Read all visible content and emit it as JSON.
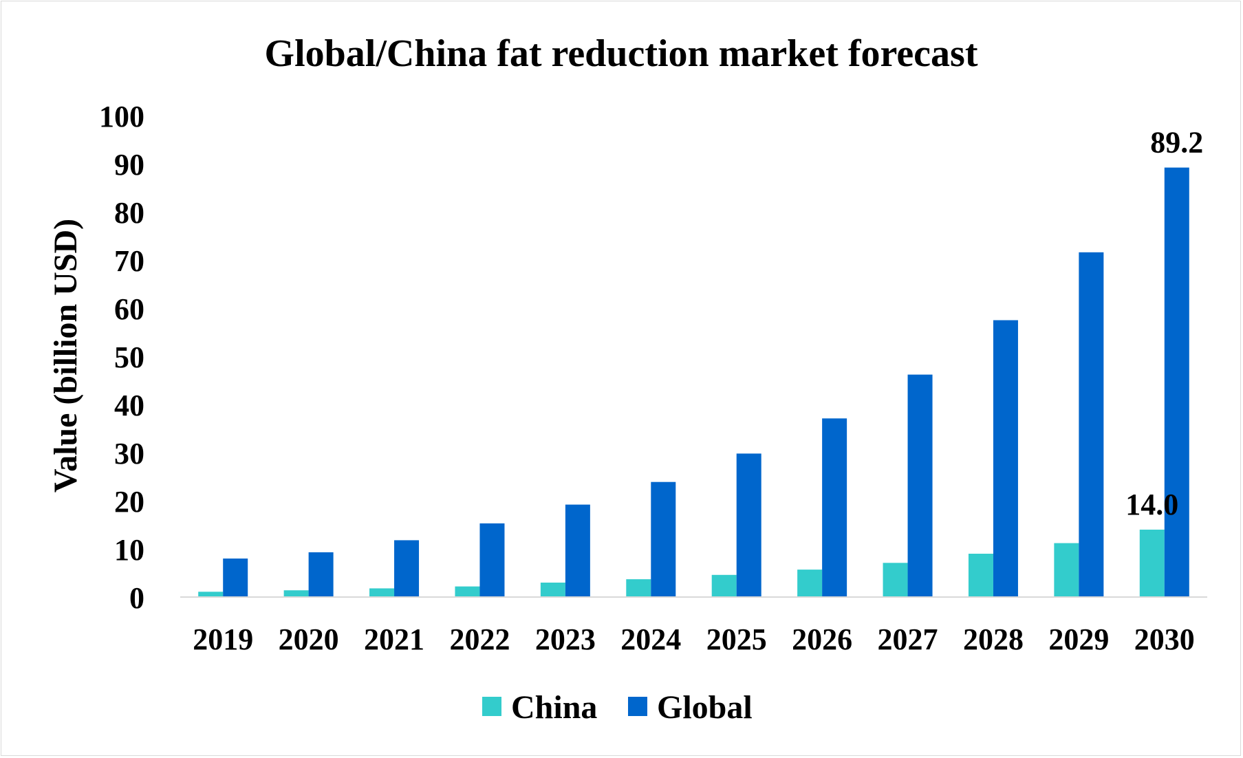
{
  "chart_data": {
    "type": "bar",
    "title": "Global/China fat reduction market forecast",
    "xlabel": "",
    "ylabel": "Value (billion USD)",
    "ylim": [
      0,
      100
    ],
    "yticks": [
      "0",
      "10",
      "20",
      "30",
      "40",
      "50",
      "60",
      "70",
      "80",
      "90",
      "100"
    ],
    "categories": [
      "2019",
      "2020",
      "2021",
      "2022",
      "2023",
      "2024",
      "2025",
      "2026",
      "2027",
      "2028",
      "2029",
      "2030"
    ],
    "series": [
      {
        "name": "China",
        "color": "#33cccc",
        "values": [
          1.1,
          1.4,
          1.8,
          2.2,
          3.0,
          3.7,
          4.6,
          5.7,
          7.1,
          9.0,
          11.2,
          14.0
        ]
      },
      {
        "name": "Global",
        "color": "#0066cc",
        "values": [
          8.0,
          9.3,
          11.8,
          15.3,
          19.2,
          23.9,
          29.8,
          37.1,
          46.2,
          57.5,
          71.6,
          89.2
        ]
      }
    ],
    "data_labels": [
      {
        "series": "China",
        "category": "2030",
        "text": "14.0"
      },
      {
        "series": "Global",
        "category": "2030",
        "text": "89.2"
      }
    ],
    "grid": false,
    "legend": "bottom"
  }
}
